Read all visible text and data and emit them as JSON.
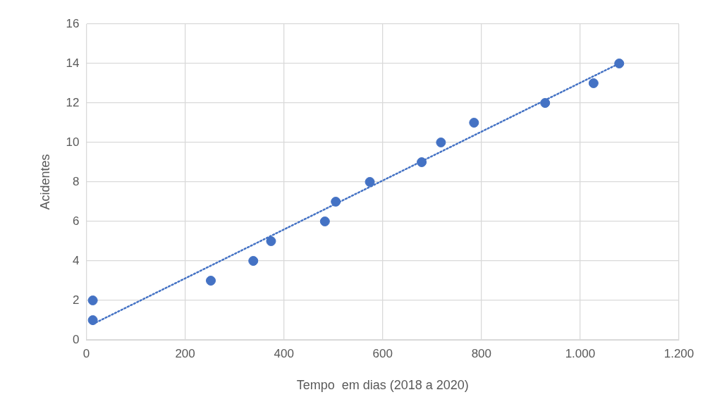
{
  "chart_data": {
    "type": "scatter",
    "xlabel": "Tempo  em dias (2018 a 2020)",
    "ylabel": "Acidentes",
    "xlim": [
      0,
      1200
    ],
    "xticks": [
      0,
      200,
      400,
      600,
      800,
      {
        "value": 1000,
        "label": "1.000"
      },
      {
        "value": 1200,
        "label": "1.200"
      }
    ],
    "ylim": [
      0,
      16
    ],
    "yticks": [
      0,
      2,
      4,
      6,
      8,
      10,
      12,
      14,
      16
    ],
    "grid": true,
    "legend": false,
    "series": [
      {
        "type": "scatter",
        "color": "#4472c4",
        "marker": "circle",
        "x": [
          13,
          13,
          252,
          338,
          374,
          483,
          505,
          574,
          679,
          718,
          785,
          929,
          1027,
          1079
        ],
        "values": [
          2,
          1,
          3,
          4,
          5,
          6,
          7,
          8,
          9,
          10,
          11,
          12,
          13,
          14
        ]
      },
      {
        "type": "line",
        "color": "#4472c4",
        "line_style": "dotted",
        "marker": "none",
        "x": [
          13,
          1079
        ],
        "values": [
          0.8,
          14
        ]
      }
    ]
  }
}
